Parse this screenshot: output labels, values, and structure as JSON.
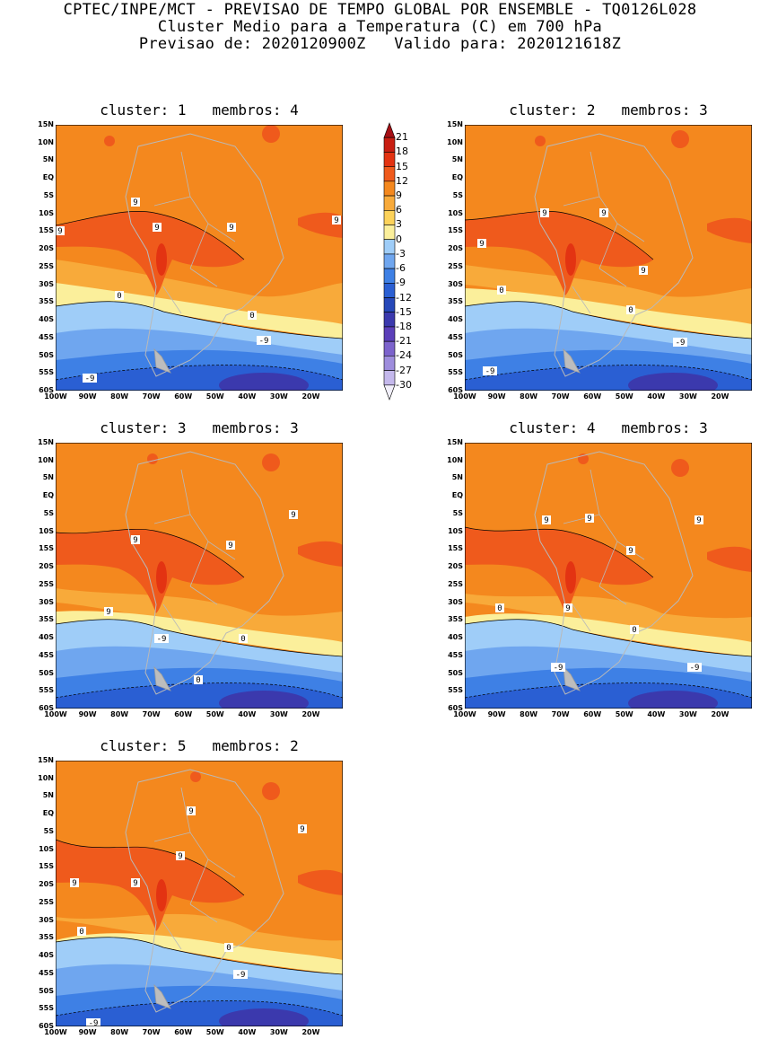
{
  "header": {
    "line1": "CPTEC/INPE/MCT - PREVISAO DE TEMPO GLOBAL POR ENSEMBLE - TQ0126L028",
    "line2": "Cluster Medio para a Temperatura (C) em 700 hPa",
    "line3": "Previsao de: 2020120900Z   Valido para: 2020121618Z"
  },
  "axes": {
    "lat_labels": [
      "15N",
      "10N",
      "5N",
      "EQ",
      "5S",
      "10S",
      "15S",
      "20S",
      "25S",
      "30S",
      "35S",
      "40S",
      "45S",
      "50S",
      "55S",
      "60S"
    ],
    "lon_labels": [
      "100W",
      "90W",
      "80W",
      "70W",
      "60W",
      "50W",
      "40W",
      "30W",
      "20W"
    ]
  },
  "panels": [
    {
      "title": "cluster: 1   membros: 4",
      "contours": [
        "9",
        "9",
        "9",
        "9",
        "9",
        "0",
        "0",
        "-9",
        "-9"
      ]
    },
    {
      "title": "cluster: 2   membros: 3",
      "contours": [
        "9",
        "9",
        "9",
        "9",
        "0",
        "0",
        "-9",
        "-9"
      ]
    },
    {
      "title": "cluster: 3   membros: 3",
      "contours": [
        "9",
        "9",
        "9",
        "9",
        "0",
        "0",
        "-9"
      ]
    },
    {
      "title": "cluster: 4   membros: 3",
      "contours": [
        "9",
        "9",
        "9",
        "9",
        "9",
        "0",
        "0",
        "-9",
        "-9"
      ]
    },
    {
      "title": "cluster: 5   membros: 2",
      "contours": [
        "9",
        "9",
        "9",
        "9",
        "9",
        "0",
        "0",
        "-9",
        "-9"
      ]
    }
  ],
  "colorbar": {
    "labels": [
      "21",
      "18",
      "15",
      "12",
      "9",
      "6",
      "3",
      "0",
      "-3",
      "-6",
      "-9",
      "-12",
      "-15",
      "-18",
      "-21",
      "-24",
      "-27",
      "-30"
    ],
    "colors": [
      "#a50f15",
      "#c81e12",
      "#e33312",
      "#ef5a1c",
      "#f4881e",
      "#f8aa3a",
      "#fcd25a",
      "#fbef9b",
      "#9fcdf8",
      "#6fa6ef",
      "#3e80e5",
      "#2a5fd3",
      "#2648b9",
      "#3b39ad",
      "#5b3fb9",
      "#7c63cc",
      "#9e8ddd",
      "#c4b8ec",
      "#f2f0fb"
    ]
  }
}
